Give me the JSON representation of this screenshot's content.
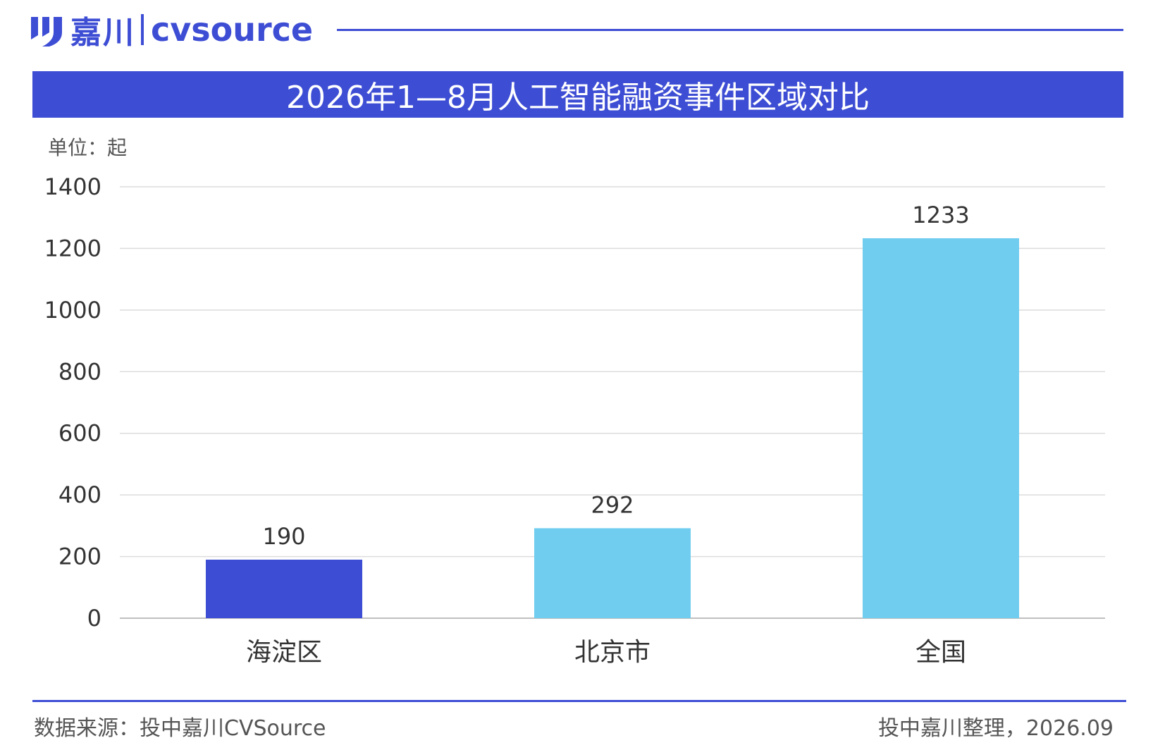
{
  "logo": {
    "cn": "嘉川",
    "en": "cvsource"
  },
  "unit_label": "单位：起",
  "footer": {
    "source": "数据来源：投中嘉川CVSource",
    "credit": "投中嘉川整理，2026.09"
  },
  "colors": {
    "brand": "#3e4ed4",
    "bar_highlight": "#3e4ed4",
    "bar_default": "#70cdf0"
  },
  "chart_data": {
    "type": "bar",
    "title": "2026年1—8月人工智能融资事件区域对比",
    "categories": [
      "海淀区",
      "北京市",
      "全国"
    ],
    "values": [
      190,
      292,
      1233
    ],
    "data_labels": [
      "190",
      "292",
      "1233"
    ],
    "ylim": [
      0,
      1400
    ],
    "yticks": [
      0,
      200,
      400,
      600,
      800,
      1000,
      1200,
      1400
    ],
    "ytick_labels": [
      "0",
      "200",
      "400",
      "600",
      "800",
      "1000",
      "1200",
      "1400"
    ],
    "grid": true,
    "xlabel": "",
    "ylabel": ""
  }
}
